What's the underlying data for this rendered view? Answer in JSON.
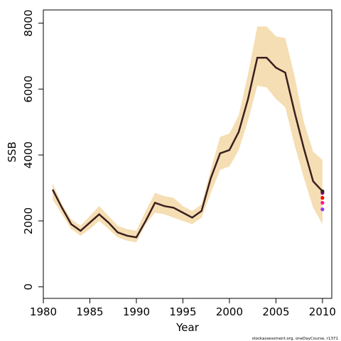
{
  "chart_data": {
    "type": "line",
    "xlabel": "Year",
    "ylabel": "SSB",
    "footnote": "stockassessment.org, oneDayCourse, r1371",
    "xlim": [
      1980,
      2011
    ],
    "ylim": [
      -350,
      8400
    ],
    "x_ticks": [
      1980,
      1985,
      1990,
      1995,
      2000,
      2005,
      2010
    ],
    "y_ticks": [
      0,
      2000,
      4000,
      6000,
      8000
    ],
    "grid": false,
    "legend": "none",
    "colors": {
      "band": "#f5deb3",
      "estimate": "#3a1f1f",
      "retro1": "#ff0000",
      "retro2": "#ff1493",
      "retro3": "#9b30ff",
      "retro4": "#8b008b"
    },
    "x": [
      1981,
      1982,
      1983,
      1984,
      1985,
      1986,
      1987,
      1988,
      1989,
      1990,
      1991,
      1992,
      1993,
      1994,
      1995,
      1996,
      1997,
      1998,
      1999,
      2000,
      2001,
      2002,
      2003,
      2004,
      2005,
      2006,
      2007,
      2008,
      2009,
      2010
    ],
    "band_upper": [
      3150,
      2500,
      2050,
      1850,
      2150,
      2450,
      2150,
      1850,
      1750,
      1700,
      2300,
      2850,
      2750,
      2700,
      2450,
      2300,
      2500,
      3550,
      4550,
      4650,
      5200,
      6450,
      7900,
      7900,
      7600,
      7550,
      6400,
      5000,
      4100,
      3850
    ],
    "band_lower": [
      2650,
      2200,
      1750,
      1550,
      1750,
      2000,
      1750,
      1500,
      1400,
      1350,
      1900,
      2250,
      2200,
      2100,
      2000,
      1900,
      2100,
      2850,
      3550,
      3650,
      4150,
      5050,
      6100,
      6050,
      5700,
      5450,
      4300,
      3300,
      2400,
      1900
    ],
    "estimate": [
      2950,
      2400,
      1900,
      1700,
      1950,
      2200,
      1950,
      1650,
      1550,
      1500,
      2000,
      2550,
      2450,
      2400,
      2250,
      2100,
      2300,
      3300,
      4050,
      4150,
      4700,
      5700,
      6950,
      6950,
      6650,
      6500,
      5300,
      4200,
      3200,
      2900
    ],
    "retro_series": [
      {
        "values": [
          null,
          null,
          null,
          null,
          null,
          null,
          null,
          null,
          null,
          null,
          null,
          null,
          null,
          null,
          null,
          null,
          null,
          null,
          null,
          null,
          null,
          null,
          null,
          null,
          null,
          null,
          null,
          null,
          null,
          2700
        ]
      },
      {
        "values": [
          null,
          null,
          null,
          null,
          null,
          null,
          null,
          null,
          null,
          null,
          null,
          null,
          null,
          null,
          null,
          null,
          null,
          null,
          null,
          null,
          null,
          null,
          null,
          null,
          null,
          null,
          null,
          null,
          null,
          2550
        ]
      },
      {
        "values": [
          null,
          null,
          null,
          null,
          null,
          null,
          null,
          null,
          null,
          null,
          null,
          null,
          null,
          null,
          null,
          null,
          null,
          null,
          null,
          null,
          null,
          null,
          null,
          null,
          null,
          null,
          null,
          null,
          null,
          2350
        ]
      },
      {
        "values": [
          null,
          null,
          null,
          null,
          null,
          null,
          null,
          null,
          null,
          null,
          null,
          null,
          null,
          null,
          null,
          null,
          null,
          null,
          null,
          null,
          null,
          null,
          null,
          null,
          null,
          null,
          null,
          null,
          null,
          2850
        ]
      }
    ]
  }
}
